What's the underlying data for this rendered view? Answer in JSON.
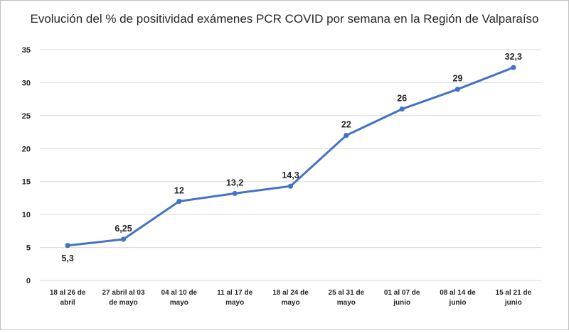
{
  "chart_data": {
    "type": "line",
    "title": "Evolución del % de positividad exámenes PCR COVID por semana en la Región de Valparaíso",
    "xlabel": "",
    "ylabel": "",
    "categories": [
      [
        "18 al 26 de",
        "abril"
      ],
      [
        "27 abril al 03",
        "de mayo"
      ],
      [
        "04 al 10 de",
        "mayo"
      ],
      [
        "11 al 17 de",
        "mayo"
      ],
      [
        "18 al 24 de",
        "mayo"
      ],
      [
        "25 al 31 de",
        "mayo"
      ],
      [
        "01 al 07 de",
        "junio"
      ],
      [
        "08 al 14 de",
        "junio"
      ],
      [
        "15 al 21 de",
        "junio"
      ]
    ],
    "series": [
      {
        "values": [
          5.3,
          6.25,
          12,
          13.2,
          14.3,
          22,
          26,
          29,
          32.3
        ],
        "labels": [
          "5,3",
          "6,25",
          "12",
          "13,2",
          "14,3",
          "22",
          "26",
          "29",
          "32,3"
        ],
        "color": "#4472c4"
      }
    ],
    "ylim": [
      0,
      35
    ],
    "yticks": [
      0,
      5,
      10,
      15,
      20,
      25,
      30,
      35
    ],
    "grid": true,
    "legend": "none"
  }
}
